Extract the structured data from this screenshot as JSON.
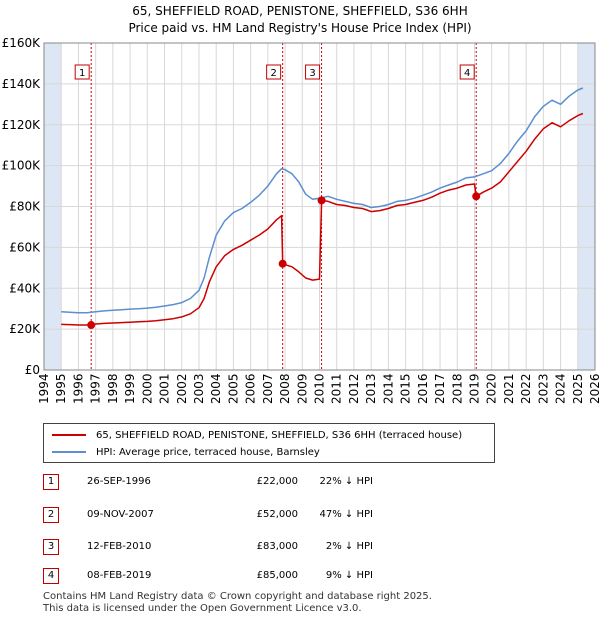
{
  "title_line1": "65, SHEFFIELD ROAD, PENISTONE, SHEFFIELD, S36 6HH",
  "title_line2": "Price paid vs. HM Land Registry's House Price Index (HPI)",
  "colors": {
    "property": "#cc0000",
    "hpi": "#5b8fd0",
    "shade": "#dde6f4",
    "grid": "#d8d8d8",
    "marker_border": "#c00000"
  },
  "legend": {
    "property_label": "65, SHEFFIELD ROAD, PENISTONE, SHEFFIELD, S36 6HH (terraced house)",
    "hpi_label": "HPI: Average price, terraced house, Barnsley"
  },
  "transactions": [
    {
      "num": "1",
      "date": "26-SEP-1996",
      "price": "£22,000",
      "hpi_diff": "22% ↓ HPI"
    },
    {
      "num": "2",
      "date": "09-NOV-2007",
      "price": "£52,000",
      "hpi_diff": "47% ↓ HPI"
    },
    {
      "num": "3",
      "date": "12-FEB-2010",
      "price": "£83,000",
      "hpi_diff": "2% ↓ HPI"
    },
    {
      "num": "4",
      "date": "08-FEB-2019",
      "price": "£85,000",
      "hpi_diff": "9% ↓ HPI"
    }
  ],
  "footer_line1": "Contains HM Land Registry data © Crown copyright and database right 2025.",
  "footer_line2": "This data is licensed under the Open Government Licence v3.0.",
  "chart_data": {
    "type": "line",
    "title": "65, SHEFFIELD ROAD, PENISTONE, SHEFFIELD, S36 6HH — Price paid vs. HM Land Registry's House Price Index (HPI)",
    "xlim": [
      1994,
      2026
    ],
    "ylim": [
      0,
      160000
    ],
    "x_ticks": [
      1994,
      1995,
      1996,
      1997,
      1998,
      1999,
      2000,
      2001,
      2002,
      2003,
      2004,
      2005,
      2006,
      2007,
      2008,
      2009,
      2010,
      2011,
      2012,
      2013,
      2014,
      2015,
      2016,
      2017,
      2018,
      2019,
      2020,
      2021,
      2022,
      2023,
      2024,
      2025,
      2026
    ],
    "y_ticks": [
      0,
      20000,
      40000,
      60000,
      80000,
      100000,
      120000,
      140000,
      160000
    ],
    "y_tick_labels": [
      "£0",
      "£20K",
      "£40K",
      "£60K",
      "£80K",
      "£100K",
      "£120K",
      "£140K",
      "£160K"
    ],
    "shaded_ranges": [
      [
        1994,
        1995.0
      ],
      [
        2025.0,
        2026
      ]
    ],
    "markers": [
      {
        "label": "1",
        "x": 1996.74,
        "y": 22000
      },
      {
        "label": "2",
        "x": 2007.86,
        "y": 52000
      },
      {
        "label": "3",
        "x": 2010.12,
        "y": 83000
      },
      {
        "label": "4",
        "x": 2019.1,
        "y": 85000
      }
    ],
    "series": [
      {
        "name": "HPI: Average price, terraced house, Barnsley",
        "points": [
          [
            1995.0,
            28500
          ],
          [
            1995.5,
            28300
          ],
          [
            1996.0,
            28000
          ],
          [
            1996.5,
            28000
          ],
          [
            1997.0,
            28500
          ],
          [
            1997.5,
            28900
          ],
          [
            1998.0,
            29200
          ],
          [
            1998.5,
            29500
          ],
          [
            1999.0,
            29800
          ],
          [
            1999.5,
            30000
          ],
          [
            2000.0,
            30300
          ],
          [
            2000.5,
            30700
          ],
          [
            2001.0,
            31300
          ],
          [
            2001.5,
            32000
          ],
          [
            2002.0,
            33000
          ],
          [
            2002.5,
            35000
          ],
          [
            2003.0,
            39000
          ],
          [
            2003.3,
            45000
          ],
          [
            2003.6,
            55000
          ],
          [
            2004.0,
            66000
          ],
          [
            2004.5,
            73000
          ],
          [
            2005.0,
            77000
          ],
          [
            2005.5,
            79000
          ],
          [
            2006.0,
            82000
          ],
          [
            2006.5,
            85500
          ],
          [
            2007.0,
            90000
          ],
          [
            2007.5,
            96000
          ],
          [
            2007.8,
            98500
          ],
          [
            2008.0,
            98000
          ],
          [
            2008.4,
            96000
          ],
          [
            2008.8,
            92000
          ],
          [
            2009.2,
            86000
          ],
          [
            2009.6,
            83500
          ],
          [
            2010.0,
            84000
          ],
          [
            2010.5,
            85000
          ],
          [
            2011.0,
            83500
          ],
          [
            2011.5,
            82500
          ],
          [
            2012.0,
            81500
          ],
          [
            2012.5,
            81000
          ],
          [
            2013.0,
            79500
          ],
          [
            2013.5,
            80000
          ],
          [
            2014.0,
            81000
          ],
          [
            2014.5,
            82500
          ],
          [
            2015.0,
            83000
          ],
          [
            2015.5,
            84000
          ],
          [
            2016.0,
            85500
          ],
          [
            2016.5,
            87000
          ],
          [
            2017.0,
            89000
          ],
          [
            2017.5,
            90500
          ],
          [
            2018.0,
            92000
          ],
          [
            2018.5,
            94000
          ],
          [
            2019.0,
            94500
          ],
          [
            2019.5,
            96000
          ],
          [
            2020.0,
            97500
          ],
          [
            2020.5,
            101000
          ],
          [
            2021.0,
            106000
          ],
          [
            2021.5,
            112000
          ],
          [
            2022.0,
            117000
          ],
          [
            2022.5,
            124000
          ],
          [
            2023.0,
            129000
          ],
          [
            2023.5,
            132000
          ],
          [
            2024.0,
            130000
          ],
          [
            2024.5,
            134000
          ],
          [
            2025.0,
            137000
          ],
          [
            2025.3,
            138000
          ]
        ]
      },
      {
        "name": "65, SHEFFIELD ROAD, PENISTONE, SHEFFIELD, S36 6HH (terraced house)",
        "points": [
          [
            1995.0,
            22300
          ],
          [
            1995.5,
            22200
          ],
          [
            1996.0,
            22000
          ],
          [
            1996.74,
            22000
          ],
          [
            1997.0,
            22500
          ],
          [
            1997.5,
            22800
          ],
          [
            1998.0,
            23000
          ],
          [
            1998.5,
            23200
          ],
          [
            1999.0,
            23400
          ],
          [
            1999.5,
            23600
          ],
          [
            2000.0,
            23800
          ],
          [
            2000.5,
            24100
          ],
          [
            2001.0,
            24600
          ],
          [
            2001.5,
            25100
          ],
          [
            2002.0,
            26000
          ],
          [
            2002.5,
            27500
          ],
          [
            2003.0,
            30500
          ],
          [
            2003.3,
            35000
          ],
          [
            2003.6,
            43000
          ],
          [
            2004.0,
            50500
          ],
          [
            2004.5,
            56000
          ],
          [
            2005.0,
            59000
          ],
          [
            2005.5,
            61000
          ],
          [
            2006.0,
            63500
          ],
          [
            2006.5,
            66000
          ],
          [
            2007.0,
            69000
          ],
          [
            2007.5,
            73500
          ],
          [
            2007.8,
            75500
          ],
          [
            2007.86,
            52000
          ],
          [
            2008.0,
            51500
          ],
          [
            2008.4,
            50500
          ],
          [
            2008.8,
            48000
          ],
          [
            2009.2,
            45000
          ],
          [
            2009.6,
            44000
          ],
          [
            2010.0,
            44500
          ],
          [
            2010.12,
            83000
          ],
          [
            2010.5,
            82500
          ],
          [
            2011.0,
            81000
          ],
          [
            2011.5,
            80500
          ],
          [
            2012.0,
            79500
          ],
          [
            2012.5,
            79000
          ],
          [
            2013.0,
            77500
          ],
          [
            2013.5,
            78000
          ],
          [
            2014.0,
            79000
          ],
          [
            2014.5,
            80500
          ],
          [
            2015.0,
            81000
          ],
          [
            2015.5,
            82000
          ],
          [
            2016.0,
            83000
          ],
          [
            2016.5,
            84500
          ],
          [
            2017.0,
            86500
          ],
          [
            2017.5,
            88000
          ],
          [
            2018.0,
            89000
          ],
          [
            2018.5,
            90500
          ],
          [
            2019.0,
            91000
          ],
          [
            2019.1,
            85000
          ],
          [
            2019.5,
            87000
          ],
          [
            2020.0,
            89000
          ],
          [
            2020.5,
            92000
          ],
          [
            2021.0,
            97000
          ],
          [
            2021.5,
            102000
          ],
          [
            2022.0,
            107000
          ],
          [
            2022.5,
            113000
          ],
          [
            2023.0,
            118000
          ],
          [
            2023.5,
            121000
          ],
          [
            2024.0,
            119000
          ],
          [
            2024.5,
            122000
          ],
          [
            2025.0,
            124500
          ],
          [
            2025.3,
            125500
          ]
        ]
      }
    ]
  }
}
